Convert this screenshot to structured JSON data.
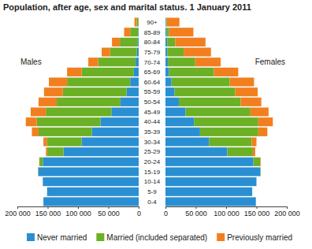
{
  "chart_data": [
    {
      "type": "bar",
      "orientation": "horizontal",
      "stacked": true,
      "title": "Population, after age, sex and marital status. 1 January 2011",
      "annotation": "Males",
      "legend": "bottom",
      "categories": [
        "0-4",
        "5-9",
        "10-14",
        "15-19",
        "20-24",
        "25-29",
        "30-34",
        "35-39",
        "40-44",
        "45-49",
        "50-54",
        "55-59",
        "60-64",
        "65-69",
        "70-74",
        "75-79",
        "80-84",
        "85-89",
        "90+"
      ],
      "xlim": [
        200000,
        0
      ],
      "xticks": [
        {
          "value": 200000,
          "label": "200 000"
        },
        {
          "value": 150000,
          "label": "150 000"
        },
        {
          "value": 100000,
          "label": "100 000"
        },
        {
          "value": 50000,
          "label": "50 000"
        },
        0
      ],
      "series": [
        {
          "name": "Never married",
          "color": "#2a8fd2",
          "values": [
            157000,
            151000,
            158000,
            165500,
            158000,
            124000,
            94000,
            77000,
            63000,
            45000,
            30000,
            20000,
            14000,
            8000,
            5000,
            3000,
            2000,
            1000,
            300
          ]
        },
        {
          "name": "Married (included separated)",
          "color": "#6bb025",
          "values": [
            0,
            0,
            0,
            500,
            5500,
            27000,
            57000,
            88000,
            105000,
            108000,
            105000,
            105000,
            104000,
            86000,
            62000,
            44000,
            29000,
            13000,
            3000
          ]
        },
        {
          "name": "Previously married",
          "color": "#f27f1f",
          "values": [
            0,
            0,
            0,
            0,
            500,
            2000,
            6000,
            11000,
            18000,
            25000,
            30000,
            31000,
            30000,
            24000,
            16000,
            14000,
            13000,
            10000,
            3700
          ]
        }
      ]
    },
    {
      "type": "bar",
      "orientation": "horizontal",
      "stacked": true,
      "annotation": "Females",
      "xlim": [
        0,
        200000
      ],
      "xticks": [
        0,
        {
          "value": 50000,
          "label": "50 000"
        },
        {
          "value": 100000,
          "label": "100 000"
        },
        {
          "value": 150000,
          "label": "150 000"
        },
        {
          "value": 200000,
          "label": "200 000"
        }
      ],
      "series": [
        {
          "color": "#2a8fd2",
          "values": [
            149000,
            143000,
            150000,
            156500,
            145000,
            102000,
            72000,
            57000,
            47000,
            33000,
            22000,
            15000,
            10000,
            6000,
            4000,
            3000,
            3000,
            2000,
            1000
          ]
        },
        {
          "color": "#6bb025",
          "values": [
            0,
            0,
            0,
            500,
            11000,
            42000,
            70000,
            96000,
            106000,
            107000,
            102000,
            100000,
            96000,
            74000,
            45000,
            27000,
            13000,
            4000,
            1000
          ]
        },
        {
          "color": "#f27f1f",
          "values": [
            0,
            0,
            0,
            0,
            1000,
            4000,
            8000,
            15000,
            24000,
            30000,
            34000,
            37000,
            40000,
            40000,
            42000,
            45000,
            50000,
            40000,
            21000
          ]
        }
      ]
    }
  ]
}
